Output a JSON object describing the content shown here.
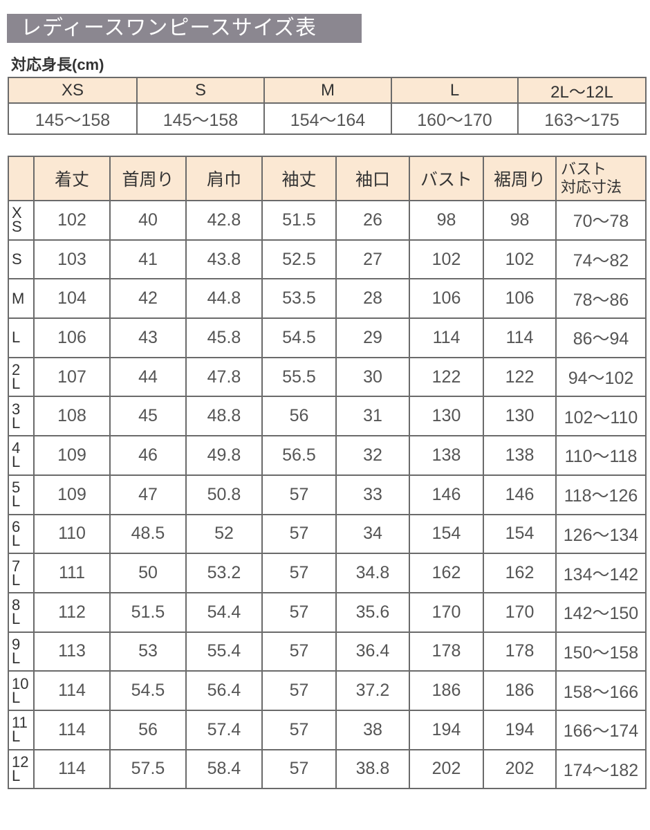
{
  "title": "レディースワンピースサイズ表",
  "height_table": {
    "label": "対応身長(cm)",
    "sizes": [
      "XS",
      "S",
      "M",
      "L",
      "2L～12L"
    ],
    "heights": [
      "145～158",
      "145～158",
      "154～164",
      "160～170",
      "163～175"
    ]
  },
  "size_table": {
    "headers": [
      "",
      "着丈",
      "首周り",
      "肩巾",
      "袖丈",
      "袖口",
      "バスト",
      "裾周り",
      "バスト\n対応寸法"
    ],
    "rows": [
      [
        "X\nS",
        "102",
        "40",
        "42.8",
        "51.5",
        "26",
        "98",
        "98",
        "70～78"
      ],
      [
        "S",
        "103",
        "41",
        "43.8",
        "52.5",
        "27",
        "102",
        "102",
        "74～82"
      ],
      [
        "M",
        "104",
        "42",
        "44.8",
        "53.5",
        "28",
        "106",
        "106",
        "78～86"
      ],
      [
        "L",
        "106",
        "43",
        "45.8",
        "54.5",
        "29",
        "114",
        "114",
        "86～94"
      ],
      [
        "2\nL",
        "107",
        "44",
        "47.8",
        "55.5",
        "30",
        "122",
        "122",
        "94～102"
      ],
      [
        "3\nL",
        "108",
        "45",
        "48.8",
        "56",
        "31",
        "130",
        "130",
        "102～110"
      ],
      [
        "4\nL",
        "109",
        "46",
        "49.8",
        "56.5",
        "32",
        "138",
        "138",
        "110～118"
      ],
      [
        "5\nL",
        "109",
        "47",
        "50.8",
        "57",
        "33",
        "146",
        "146",
        "118～126"
      ],
      [
        "6\nL",
        "110",
        "48.5",
        "52",
        "57",
        "34",
        "154",
        "154",
        "126～134"
      ],
      [
        "7\nL",
        "111",
        "50",
        "53.2",
        "57",
        "34.8",
        "162",
        "162",
        "134～142"
      ],
      [
        "8\nL",
        "112",
        "51.5",
        "54.4",
        "57",
        "35.6",
        "170",
        "170",
        "142～150"
      ],
      [
        "9\nL",
        "113",
        "53",
        "55.4",
        "57",
        "36.4",
        "178",
        "178",
        "150～158"
      ],
      [
        "10\nL",
        "114",
        "54.5",
        "56.4",
        "57",
        "37.2",
        "186",
        "186",
        "158～166"
      ],
      [
        "11\nL",
        "114",
        "56",
        "57.4",
        "57",
        "38",
        "194",
        "194",
        "166～174"
      ],
      [
        "12\nL",
        "114",
        "57.5",
        "58.4",
        "57",
        "38.8",
        "202",
        "202",
        "174～182"
      ]
    ]
  },
  "colors": {
    "title_bg": "#8b8790",
    "header_bg": "#fbe8d3",
    "border": "#6a6a6a",
    "text": "#555555"
  }
}
